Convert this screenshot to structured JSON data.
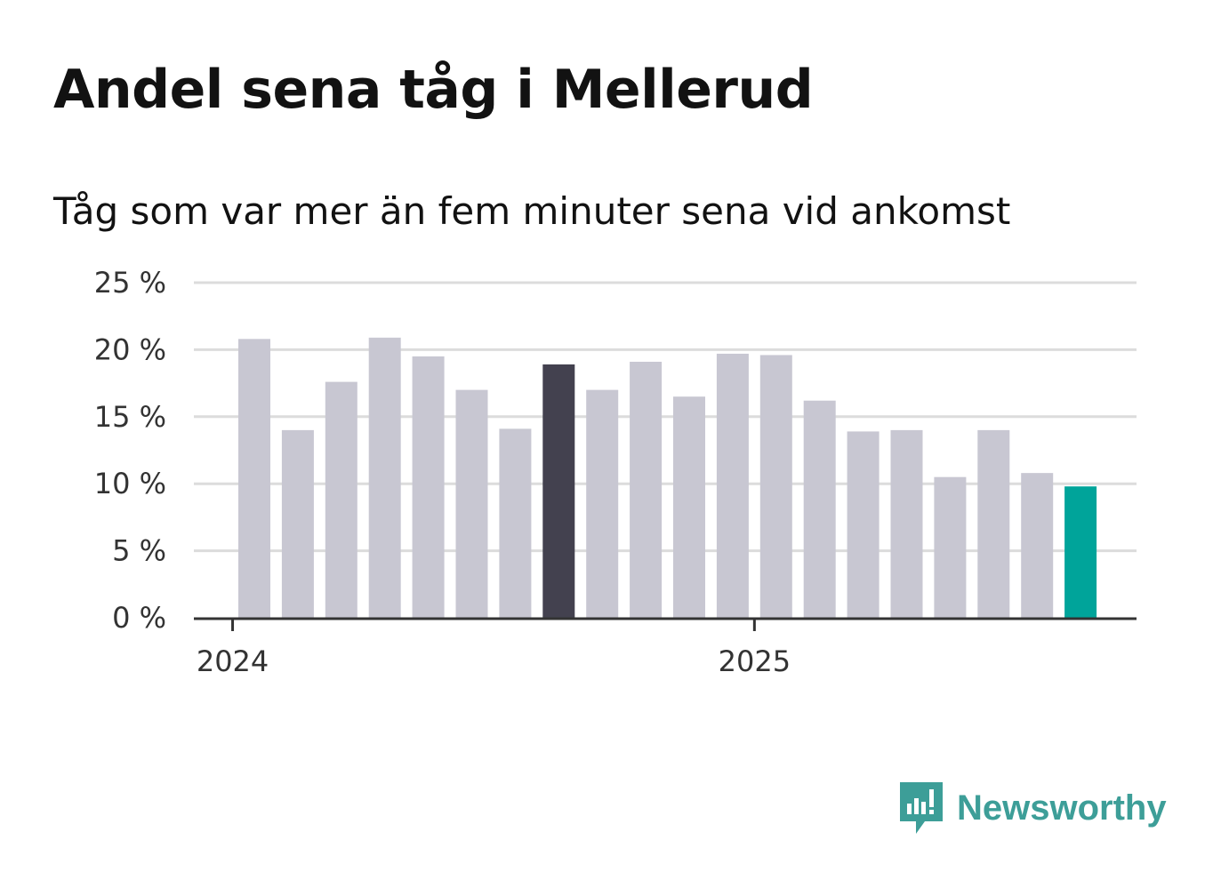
{
  "title": "Andel sena tåg i Mellerud",
  "subtitle": "Tåg som var mer än fem minuter sena vid ankomst",
  "brand": {
    "name": "Newsworthy",
    "color": "#3d9e98",
    "icon": "newsworthy-logo-icon"
  },
  "colors": {
    "bar_default": "#c8c7d2",
    "bar_highlight": "#43414f",
    "bar_latest": "#00a49a",
    "grid": "#dcdcdc",
    "axis": "#333333"
  },
  "chart_data": {
    "type": "bar",
    "title": "Andel sena tåg i Mellerud",
    "subtitle": "Tåg som var mer än fem minuter sena vid ankomst",
    "xlabel": "",
    "ylabel": "",
    "ylim": [
      0,
      25
    ],
    "y_ticks": [
      0,
      5,
      10,
      15,
      20,
      25
    ],
    "y_tick_labels": [
      "0 %",
      "5 %",
      "10 %",
      "15 %",
      "20 %",
      "25 %"
    ],
    "x_tick_labels": [
      "2024",
      "2025"
    ],
    "x_tick_positions": [
      -0.5,
      11.5
    ],
    "grid": true,
    "legend": "none",
    "values": [
      20.8,
      14.0,
      17.6,
      20.9,
      19.5,
      17.0,
      14.1,
      18.9,
      17.0,
      19.1,
      16.5,
      19.7,
      19.6,
      16.2,
      13.9,
      14.0,
      10.5,
      14.0,
      10.8,
      9.8
    ],
    "highlight_index": 7,
    "latest_index": 19
  }
}
